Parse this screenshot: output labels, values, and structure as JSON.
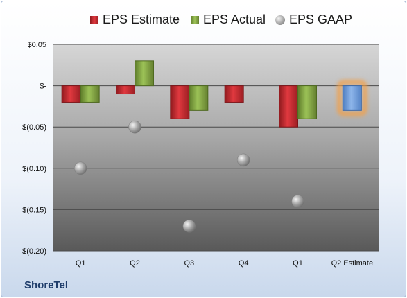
{
  "company": "ShoreTel",
  "chart_data": {
    "type": "bar",
    "categories": [
      "Q1",
      "Q2",
      "Q3",
      "Q4",
      "Q1",
      "Q2 Estimate"
    ],
    "series": [
      {
        "name": "EPS Estimate",
        "type": "bar",
        "color": "#c0262c",
        "values": [
          -0.02,
          -0.01,
          -0.04,
          -0.02,
          -0.05,
          null
        ]
      },
      {
        "name": "EPS Actual",
        "type": "bar",
        "color": "#7ea03e",
        "values": [
          -0.02,
          0.03,
          -0.03,
          null,
          -0.04,
          -0.03
        ]
      },
      {
        "name": "EPS GAAP",
        "type": "scatter",
        "color": "#9a9a9a",
        "values": [
          -0.1,
          -0.05,
          -0.17,
          -0.09,
          -0.14,
          null
        ]
      }
    ],
    "highlight": {
      "category": "Q2 Estimate",
      "color": "#6f9bd6",
      "glow": "#f3a04a"
    },
    "yticks": [
      0.05,
      0,
      -0.05,
      -0.1,
      -0.15,
      -0.2
    ],
    "ytick_labels": [
      "$0.05",
      "$-",
      "$(0.05)",
      "$(0.10)",
      "$(0.15)",
      "$(0.20)"
    ],
    "ylim": [
      -0.2,
      0.05
    ],
    "grid": true,
    "legend": "top"
  }
}
